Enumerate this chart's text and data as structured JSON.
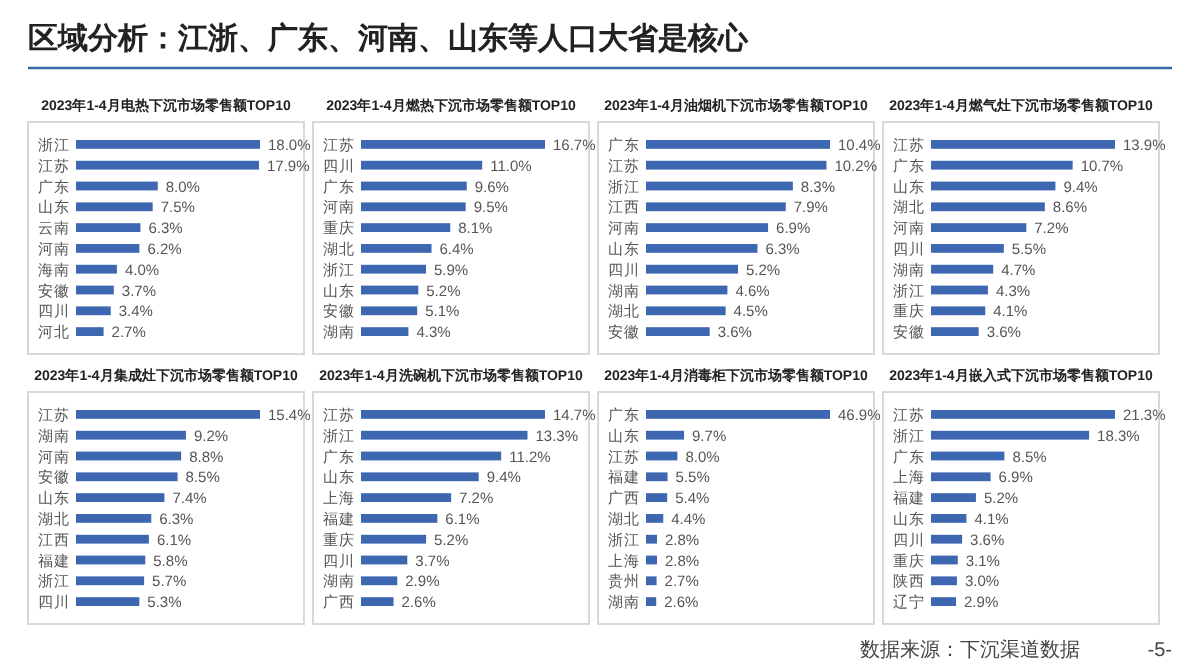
{
  "chart_data": [
    {
      "type": "other",
      "title": "区域分析：江浙、广东、河南、山东等人口大省是核心",
      "annotations": [
        "数据来源：下沉渠道数据",
        "-5-"
      ]
    },
    {
      "type": "bar",
      "orientation": "horizontal",
      "title": "2023年1-4月电热下沉市场零售额TOP10",
      "categories": [
        "浙江",
        "江苏",
        "广东",
        "山东",
        "云南",
        "河南",
        "海南",
        "安徽",
        "四川",
        "河北"
      ],
      "values": [
        18.0,
        17.9,
        8.0,
        7.5,
        6.3,
        6.2,
        4.0,
        3.7,
        3.4,
        2.7
      ],
      "value_labels": [
        "18.0%",
        "17.9%",
        "8.0%",
        "7.5%",
        "6.3%",
        "6.2%",
        "4.0%",
        "3.7%",
        "3.4%",
        "2.7%"
      ],
      "color": "#3d67b1"
    },
    {
      "type": "bar",
      "orientation": "horizontal",
      "title": "2023年1-4月燃热下沉市场零售额TOP10",
      "categories": [
        "江苏",
        "四川",
        "广东",
        "河南",
        "重庆",
        "湖北",
        "浙江",
        "山东",
        "安徽",
        "湖南"
      ],
      "values": [
        16.7,
        11.0,
        9.6,
        9.5,
        8.1,
        6.4,
        5.9,
        5.2,
        5.1,
        4.3
      ],
      "value_labels": [
        "16.7%",
        "11.0%",
        "9.6%",
        "9.5%",
        "8.1%",
        "6.4%",
        "5.9%",
        "5.2%",
        "5.1%",
        "4.3%"
      ],
      "color": "#3d67b1"
    },
    {
      "type": "bar",
      "orientation": "horizontal",
      "title": "2023年1-4月油烟机下沉市场零售额TOP10",
      "categories": [
        "广东",
        "江苏",
        "浙江",
        "江西",
        "河南",
        "山东",
        "四川",
        "湖南",
        "湖北",
        "安徽"
      ],
      "values": [
        10.4,
        10.2,
        8.3,
        7.9,
        6.9,
        6.3,
        5.2,
        4.6,
        4.5,
        3.6
      ],
      "value_labels": [
        "10.4%",
        "10.2%",
        "8.3%",
        "7.9%",
        "6.9%",
        "6.3%",
        "5.2%",
        "4.6%",
        "4.5%",
        "3.6%"
      ],
      "color": "#3d67b1"
    },
    {
      "type": "bar",
      "orientation": "horizontal",
      "title": "2023年1-4月燃气灶下沉市场零售额TOP10",
      "categories": [
        "江苏",
        "广东",
        "山东",
        "湖北",
        "河南",
        "四川",
        "湖南",
        "浙江",
        "重庆",
        "安徽"
      ],
      "values": [
        13.9,
        10.7,
        9.4,
        8.6,
        7.2,
        5.5,
        4.7,
        4.3,
        4.1,
        3.6
      ],
      "value_labels": [
        "13.9%",
        "10.7%",
        "9.4%",
        "8.6%",
        "7.2%",
        "5.5%",
        "4.7%",
        "4.3%",
        "4.1%",
        "3.6%"
      ],
      "color": "#3d67b1"
    },
    {
      "type": "bar",
      "orientation": "horizontal",
      "title": "2023年1-4月集成灶下沉市场零售额TOP10",
      "categories": [
        "江苏",
        "湖南",
        "河南",
        "安徽",
        "山东",
        "湖北",
        "江西",
        "福建",
        "浙江",
        "四川"
      ],
      "values": [
        15.4,
        9.2,
        8.8,
        8.5,
        7.4,
        6.3,
        6.1,
        5.8,
        5.7,
        5.3
      ],
      "value_labels": [
        "15.4%",
        "9.2%",
        "8.8%",
        "8.5%",
        "7.4%",
        "6.3%",
        "6.1%",
        "5.8%",
        "5.7%",
        "5.3%"
      ],
      "color": "#3d67b1"
    },
    {
      "type": "bar",
      "orientation": "horizontal",
      "title": "2023年1-4月洗碗机下沉市场零售额TOP10",
      "categories": [
        "江苏",
        "浙江",
        "广东",
        "山东",
        "上海",
        "福建",
        "重庆",
        "四川",
        "湖南",
        "广西"
      ],
      "values": [
        14.7,
        13.3,
        11.2,
        9.4,
        7.2,
        6.1,
        5.2,
        3.7,
        2.9,
        2.6
      ],
      "value_labels": [
        "14.7%",
        "13.3%",
        "11.2%",
        "9.4%",
        "7.2%",
        "6.1%",
        "5.2%",
        "3.7%",
        "2.9%",
        "2.6%"
      ],
      "color": "#3d67b1"
    },
    {
      "type": "bar",
      "orientation": "horizontal",
      "title": "2023年1-4月消毒柜下沉市场零售额TOP10",
      "categories": [
        "广东",
        "山东",
        "江苏",
        "福建",
        "广西",
        "湖北",
        "浙江",
        "上海",
        "贵州",
        "湖南"
      ],
      "values": [
        46.9,
        9.7,
        8.0,
        5.5,
        5.4,
        4.4,
        2.8,
        2.8,
        2.7,
        2.6
      ],
      "value_labels": [
        "46.9%",
        "9.7%",
        "8.0%",
        "5.5%",
        "5.4%",
        "4.4%",
        "2.8%",
        "2.8%",
        "2.7%",
        "2.6%"
      ],
      "color": "#3d67b1"
    },
    {
      "type": "bar",
      "orientation": "horizontal",
      "title": "2023年1-4月嵌入式下沉市场零售额TOP10",
      "categories": [
        "江苏",
        "浙江",
        "广东",
        "上海",
        "福建",
        "山东",
        "四川",
        "重庆",
        "陕西",
        "辽宁"
      ],
      "values": [
        21.3,
        18.3,
        8.5,
        6.9,
        5.2,
        4.1,
        3.6,
        3.1,
        3.0,
        2.9
      ],
      "value_labels": [
        "21.3%",
        "18.3%",
        "8.5%",
        "6.9%",
        "5.2%",
        "4.1%",
        "3.6%",
        "3.1%",
        "3.0%",
        "2.9%"
      ],
      "color": "#3d67b1"
    }
  ]
}
